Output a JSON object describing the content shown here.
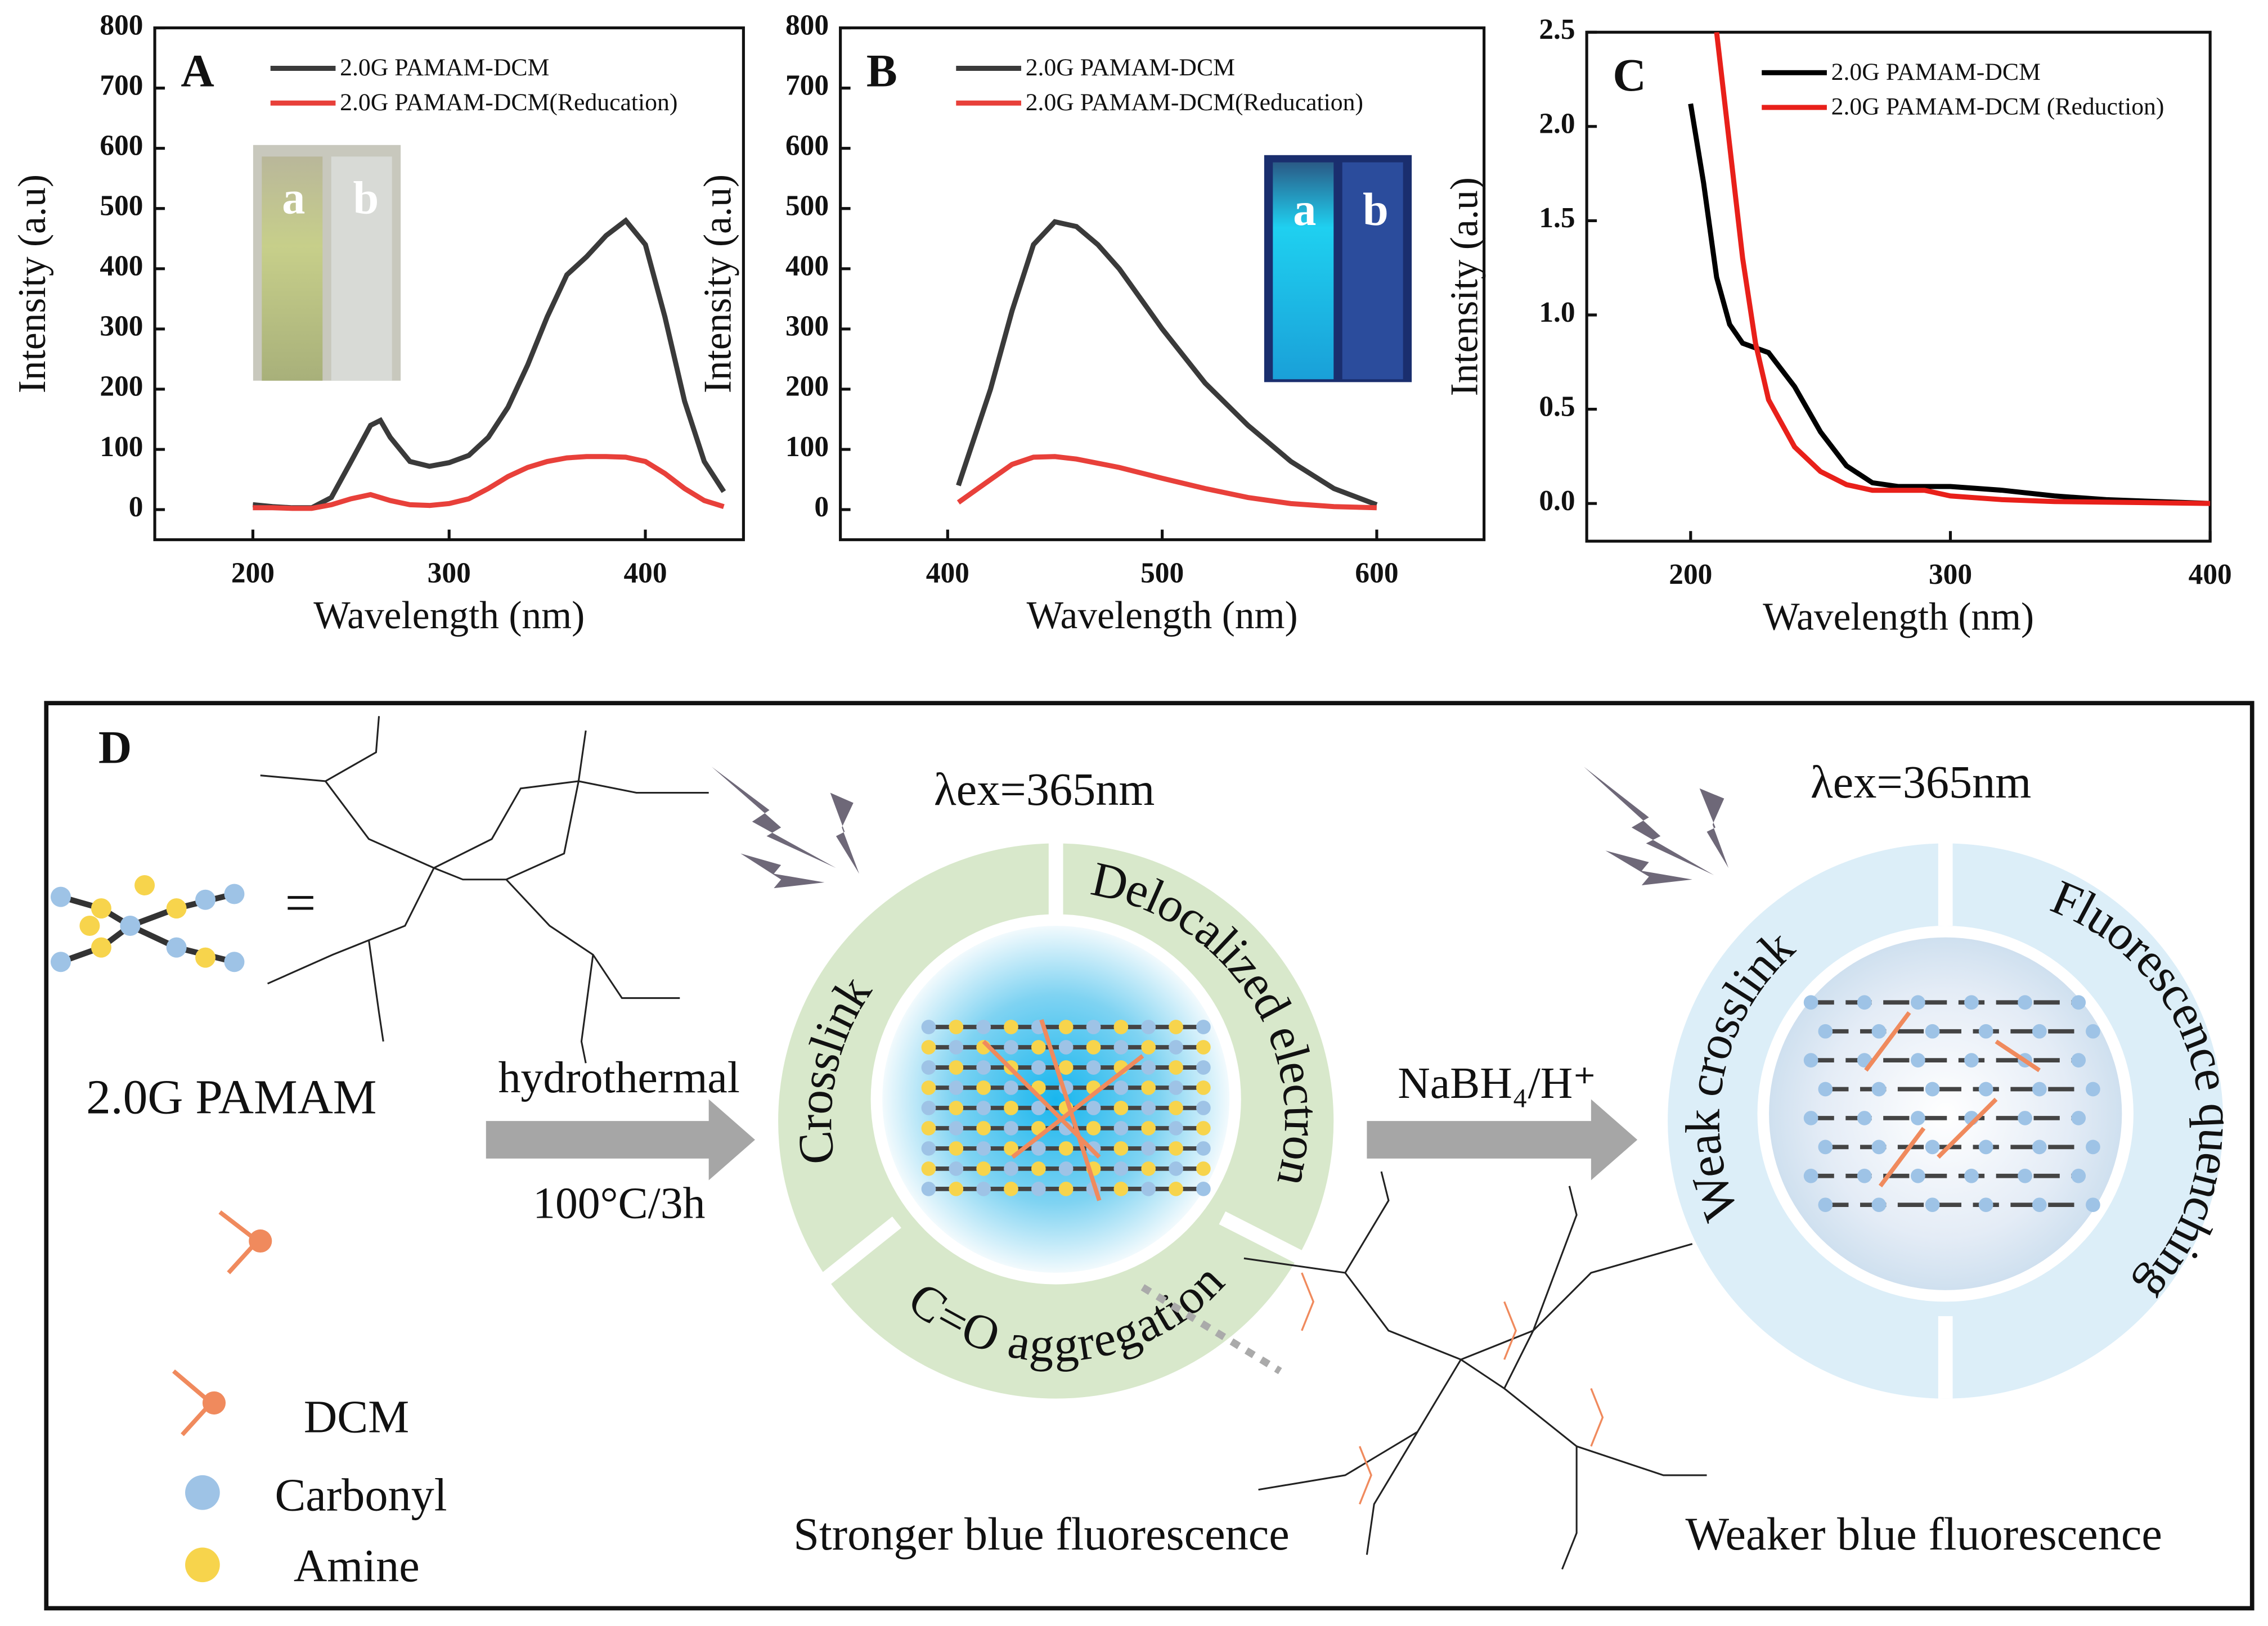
{
  "chart_data": [
    {
      "type": "line",
      "panel": "A",
      "xlabel": "Wavelength (nm)",
      "ylabel": "Intensity (a.u)",
      "xlim": [
        150,
        450
      ],
      "ylim": [
        -50,
        800
      ],
      "xticks": [
        200,
        300,
        400
      ],
      "yticks": [
        0,
        100,
        200,
        300,
        400,
        500,
        600,
        700,
        800
      ],
      "legend": "upper center",
      "inset_labels": [
        "a",
        "b"
      ],
      "series": [
        {
          "name": "2.0G PAMAM-DCM",
          "color": "#3a3a3a",
          "x": [
            200,
            210,
            220,
            230,
            240,
            250,
            260,
            265,
            270,
            280,
            290,
            300,
            310,
            320,
            330,
            340,
            350,
            360,
            370,
            380,
            390,
            400,
            410,
            420,
            430,
            440
          ],
          "values": [
            8,
            5,
            3,
            3,
            20,
            80,
            140,
            148,
            120,
            80,
            72,
            78,
            90,
            120,
            170,
            240,
            320,
            390,
            420,
            455,
            480,
            440,
            320,
            180,
            80,
            30
          ]
        },
        {
          "name": "2.0G PAMAM-DCM(Reducation)",
          "color": "#e8403a",
          "x": [
            200,
            210,
            220,
            230,
            240,
            250,
            260,
            270,
            280,
            290,
            300,
            310,
            320,
            330,
            340,
            350,
            360,
            370,
            380,
            390,
            400,
            410,
            420,
            430,
            440
          ],
          "values": [
            3,
            3,
            2,
            2,
            8,
            18,
            25,
            15,
            8,
            7,
            10,
            18,
            35,
            55,
            70,
            80,
            86,
            88,
            88,
            87,
            80,
            60,
            35,
            15,
            5
          ]
        }
      ]
    },
    {
      "type": "line",
      "panel": "B",
      "xlabel": "Wavelength (nm)",
      "ylabel": "Intensity (a.u)",
      "xlim": [
        350,
        650
      ],
      "ylim": [
        -50,
        800
      ],
      "xticks": [
        400,
        500,
        600
      ],
      "yticks": [
        0,
        100,
        200,
        300,
        400,
        500,
        600,
        700,
        800
      ],
      "legend": "upper center",
      "inset_labels": [
        "a",
        "b"
      ],
      "series": [
        {
          "name": "2.0G PAMAM-DCM",
          "color": "#3a3a3a",
          "x": [
            405,
            420,
            430,
            440,
            450,
            460,
            470,
            480,
            490,
            500,
            520,
            540,
            560,
            580,
            600
          ],
          "values": [
            40,
            200,
            330,
            440,
            478,
            470,
            440,
            400,
            350,
            300,
            210,
            140,
            80,
            35,
            8
          ]
        },
        {
          "name": "2.0G PAMAM-DCM(Reducation)",
          "color": "#e8403a",
          "x": [
            405,
            420,
            430,
            440,
            450,
            460,
            480,
            500,
            520,
            540,
            560,
            580,
            600
          ],
          "values": [
            12,
            50,
            75,
            87,
            88,
            84,
            70,
            52,
            35,
            20,
            10,
            5,
            3
          ]
        }
      ]
    },
    {
      "type": "line",
      "panel": "C",
      "xlabel": "Wavelength (nm)",
      "ylabel": "Intensity (a.u)",
      "xlim": [
        160,
        400
      ],
      "ylim": [
        -0.2,
        2.5
      ],
      "xticks": [
        200,
        300,
        400
      ],
      "yticks": [
        {
          "value": 0,
          "label": "0.0"
        },
        0.5,
        {
          "value": 1,
          "label": "1.0"
        },
        1.5,
        {
          "value": 2,
          "label": "2.0"
        },
        2.5
      ],
      "legend": "upper right",
      "series": [
        {
          "name": "2.0G PAMAM-DCM",
          "color": "#000000",
          "x": [
            200,
            205,
            210,
            215,
            220,
            230,
            240,
            250,
            260,
            270,
            280,
            300,
            320,
            340,
            360,
            380,
            400
          ],
          "values": [
            2.12,
            1.7,
            1.2,
            0.95,
            0.85,
            0.8,
            0.62,
            0.38,
            0.2,
            0.11,
            0.09,
            0.09,
            0.07,
            0.04,
            0.02,
            0.01,
            0
          ]
        },
        {
          "name": "2.0G PAMAM-DCM (Reduction)",
          "color": "#e8201a",
          "x": [
            210,
            215,
            220,
            225,
            230,
            240,
            250,
            260,
            270,
            290,
            300,
            320,
            340,
            400
          ],
          "values": [
            2.5,
            1.9,
            1.3,
            0.85,
            0.55,
            0.3,
            0.17,
            0.1,
            0.07,
            0.07,
            0.04,
            0.02,
            0.01,
            0
          ]
        }
      ]
    }
  ],
  "diagram": {
    "panel": "D",
    "equals": "=",
    "pamam": "2.0G PAMAM",
    "step1_top": "hydrothermal",
    "step1_bottom": "100°C/3h",
    "excitation": [
      "λex=365nm",
      "λex=365nm"
    ],
    "ring_left": [
      "Crosslink",
      "Delocalized electron",
      "C=O aggregation"
    ],
    "step2": "NaBH₄/H⁺",
    "ring_right": [
      "Weak crosslink",
      "Fluorescence quenching"
    ],
    "result_left": "Stronger blue fluorescence",
    "result_right": "Weaker blue fluorescence",
    "legend": [
      "DCM",
      "Carbonyl",
      "Amine"
    ]
  }
}
